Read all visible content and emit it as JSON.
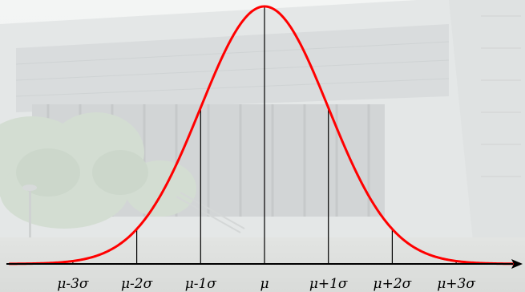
{
  "diagram": {
    "title": "",
    "curve": {
      "type": "normal-distribution",
      "color": "#ff0000",
      "mean": 0,
      "sd": 1,
      "x_range": [
        -4,
        4
      ]
    },
    "markers": [
      {
        "label": "μ-3σ",
        "value": -3
      },
      {
        "label": "μ-2σ",
        "value": -2
      },
      {
        "label": "μ-1σ",
        "value": -1
      },
      {
        "label": "μ",
        "value": 0
      },
      {
        "label": "μ+1σ",
        "value": 1
      },
      {
        "label": "μ+2σ",
        "value": 2
      },
      {
        "label": "μ+3σ",
        "value": 3
      }
    ],
    "axis": {
      "color": "#000000",
      "arrow": "right"
    },
    "background": "faded photo of a modern building with trees"
  }
}
